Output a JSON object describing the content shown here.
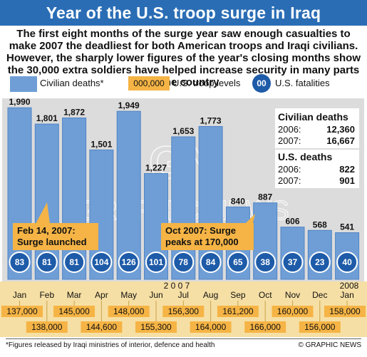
{
  "title": "Year of the U.S. troop surge in Iraq",
  "intro": "The first eight months of the surge year saw enough casualties to make 2007 the deadliest for both American troops and Iraqi civilians. However, the sharply lower figures of the year's closing months show the 30,000 extra soldiers have helped increase security in many parts of the country",
  "legend": {
    "civilian_label": "Civilian deaths*",
    "troop_sample": "000,000",
    "troop_label": "U.S. troop levels",
    "fatality_sample": "00",
    "fatality_label": "U.S. fatalities"
  },
  "civilian_box": {
    "heading": "Civilian deaths",
    "rows": [
      {
        "year": "2006:",
        "value": "12,360"
      },
      {
        "year": "2007:",
        "value": "16,667"
      }
    ]
  },
  "us_box": {
    "heading": "U.S. deaths",
    "rows": [
      {
        "year": "2006:",
        "value": "822"
      },
      {
        "year": "2007:",
        "value": "901"
      }
    ]
  },
  "callouts": {
    "feb": "Feb 14, 2007: Surge launched",
    "oct": "Oct 2007: Surge peaks at 170,000"
  },
  "year_labels": {
    "y2007": "2 0 0 7",
    "y2008": "2008"
  },
  "watermark": {
    "logo": "GN",
    "text": "GRAPHIC NEWS"
  },
  "footnote": "*Figures released by Iraqi ministries of interior, defence and health",
  "credit": "© GRAPHIC NEWS",
  "colors": {
    "title_bar": "#2a6db5",
    "bar": "#6f9ed6",
    "bar_edge": "#4f84c4",
    "circle": "#1e5ba8",
    "troop_box": "#f5b445",
    "strip": "#f6dfa4",
    "plot_bg": "#dcdcdc"
  },
  "chart_data": {
    "type": "bar",
    "categories": [
      "Jan",
      "Feb",
      "Mar",
      "Apr",
      "May",
      "Jun",
      "Jul",
      "Aug",
      "Sep",
      "Oct",
      "Nov",
      "Dec",
      "Jan"
    ],
    "series": [
      {
        "name": "Civilian deaths*",
        "values": [
          1990,
          1801,
          1872,
          1501,
          1949,
          1227,
          1653,
          1773,
          840,
          887,
          606,
          568,
          541
        ]
      },
      {
        "name": "U.S. fatalities",
        "values": [
          83,
          81,
          81,
          104,
          126,
          101,
          78,
          84,
          65,
          38,
          37,
          23,
          40
        ]
      },
      {
        "name": "U.S. troop levels",
        "values": [
          137000,
          138000,
          145000,
          144600,
          148000,
          155300,
          156300,
          164000,
          161200,
          166000,
          160000,
          156000,
          158000
        ]
      }
    ],
    "civilian_labels": [
      "1,990",
      "1,801",
      "1,872",
      "1,501",
      "1,949",
      "1,227",
      "1,653",
      "1,773",
      "840",
      "887",
      "606",
      "568",
      "541"
    ],
    "fatality_labels": [
      "83",
      "81",
      "81",
      "104",
      "126",
      "101",
      "78",
      "84",
      "65",
      "38",
      "37",
      "23",
      "40"
    ],
    "troop_labels": [
      "137,000",
      "138,000",
      "145,000",
      "144,600",
      "148,000",
      "155,300",
      "156,300",
      "164,000",
      "161,200",
      "166,000",
      "160,000",
      "156,000",
      "158,000"
    ],
    "ylim": [
      0,
      2000
    ]
  }
}
